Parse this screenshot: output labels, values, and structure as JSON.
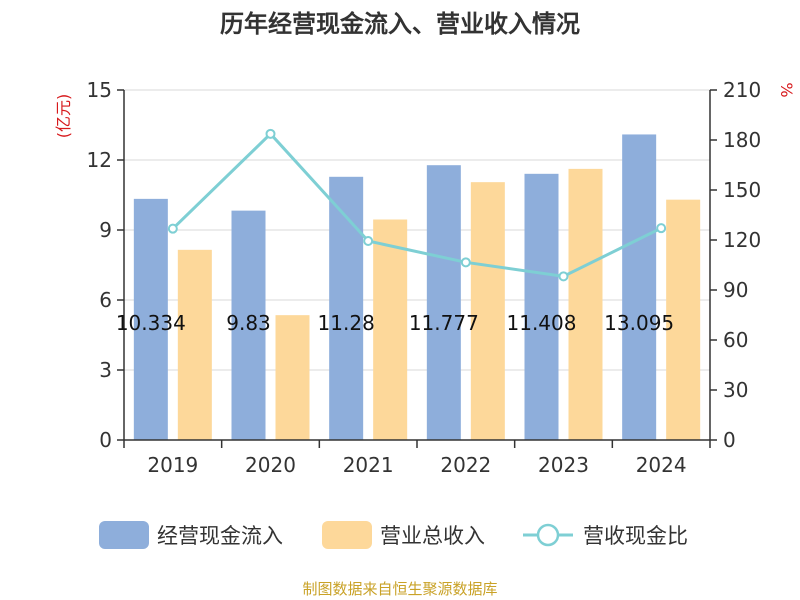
{
  "chart_data": {
    "type": "bar",
    "title": "历年经营现金流入、营业收入情况",
    "categories": [
      "2019",
      "2020",
      "2021",
      "2022",
      "2023",
      "2024"
    ],
    "series": [
      {
        "name": "经营现金流入",
        "kind": "bar",
        "axis": "left",
        "color": "#8eaedb",
        "values": [
          10.334,
          9.83,
          11.28,
          11.777,
          11.408,
          13.095
        ],
        "labels": [
          "10.334",
          "9.83",
          "11.28",
          "11.777",
          "11.408",
          "13.095"
        ]
      },
      {
        "name": "营业总收入",
        "kind": "bar",
        "axis": "left",
        "color": "#fdd89a",
        "values": [
          8.15,
          5.35,
          9.45,
          11.05,
          11.62,
          10.3
        ]
      },
      {
        "name": "营收现金比",
        "kind": "line",
        "axis": "right",
        "color": "#7ecfd4",
        "values": [
          126.8,
          183.7,
          119.4,
          106.6,
          98.2,
          127.1
        ]
      }
    ],
    "yleft": {
      "unit": "(亿元)",
      "ylim": [
        0,
        15
      ],
      "ticks": [
        0,
        3,
        6,
        9,
        12,
        15
      ]
    },
    "yright": {
      "unit": "%",
      "ylim": [
        0,
        210
      ],
      "ticks": [
        0,
        30,
        60,
        90,
        120,
        150,
        180,
        210
      ]
    },
    "grid": true,
    "legend": "bottom"
  },
  "source": "制图数据来自恒生聚源数据库"
}
